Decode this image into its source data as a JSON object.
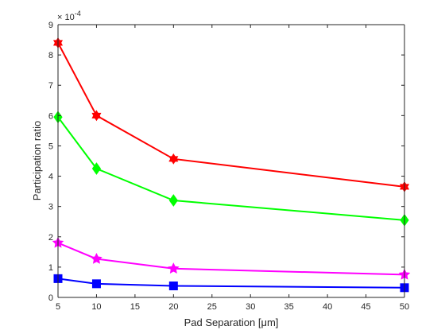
{
  "chart_data": {
    "type": "line",
    "title": "",
    "xlabel": "Pad Separation [μm]",
    "ylabel": "Participation ratio",
    "y_exponent_label": "× 10",
    "y_exponent_power": "-4",
    "xlim": [
      5,
      50
    ],
    "ylim": [
      0,
      9
    ],
    "xticks": [
      5,
      10,
      15,
      20,
      25,
      30,
      35,
      40,
      45,
      50
    ],
    "yticks": [
      0,
      1,
      2,
      3,
      4,
      5,
      6,
      7,
      8,
      9
    ],
    "grid": false,
    "x": [
      5,
      10,
      20,
      50
    ],
    "series": [
      {
        "color": "#ff0000",
        "marker": "hexagram",
        "values": [
          8.4,
          6.0,
          4.57,
          3.65
        ]
      },
      {
        "color": "#00ff00",
        "marker": "diamond",
        "values": [
          5.95,
          4.25,
          3.2,
          2.55
        ]
      },
      {
        "color": "#ff00ff",
        "marker": "star",
        "values": [
          1.8,
          1.27,
          0.95,
          0.75
        ]
      },
      {
        "color": "#0000ff",
        "marker": "square",
        "values": [
          0.62,
          0.45,
          0.38,
          0.32
        ]
      }
    ]
  }
}
